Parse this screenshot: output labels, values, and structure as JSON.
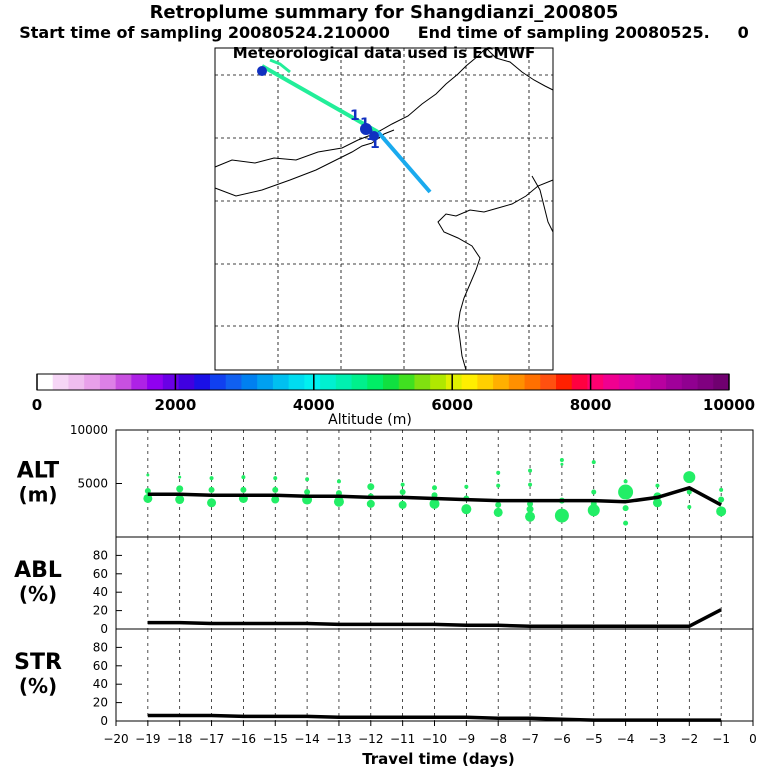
{
  "header": {
    "title": "Retroplume summary for Shangdianzi_200805",
    "start_label": "Start time of sampling 20080524.210000",
    "end_label": "End time of sampling 20080525.",
    "end_suffix": "0",
    "met_line": "Meteorological data used is ECMWF"
  },
  "colors": {
    "trajectory_a": "#22ee99",
    "trajectory_b": "#1aaaee",
    "marker": "#1030c0",
    "scatter": "#22ee66",
    "line": "#000000"
  },
  "map": {
    "marker_glyph": "1"
  },
  "colorbar": {
    "tick_labels": [
      "0",
      "2000",
      "4000",
      "6000",
      "8000",
      "10000"
    ],
    "label": "Altitude (m)",
    "colors": [
      "#ffffff",
      "#f6d6f6",
      "#efbdef",
      "#e8a0ea",
      "#dd80e6",
      "#c850e0",
      "#ae22e6",
      "#9000f0",
      "#6a00e6",
      "#4000e0",
      "#1a10e6",
      "#1040f0",
      "#1060f0",
      "#0080f0",
      "#00a0f0",
      "#00c0f0",
      "#00dcf0",
      "#00f0f0",
      "#00f0d0",
      "#00f0b0",
      "#00f08c",
      "#00ee66",
      "#10e040",
      "#40e020",
      "#80e010",
      "#b0e800",
      "#e0f000",
      "#ffee00",
      "#ffd000",
      "#ffb000",
      "#ff9000",
      "#ff7000",
      "#ff5010",
      "#ff2000",
      "#ff0040",
      "#ff0070",
      "#f00090",
      "#e000a0",
      "#d000a8",
      "#b800a0",
      "#a0009a",
      "#900090",
      "#800080",
      "#700070"
    ]
  },
  "chart_data": [
    {
      "type": "line",
      "name": "ALT",
      "panel_label": "ALT",
      "unit_label": "(m)",
      "ylim": [
        0,
        10000
      ],
      "yticks": [
        5000,
        10000
      ],
      "x": [
        -19,
        -18,
        -17,
        -16,
        -15,
        -14,
        -13,
        -12,
        -11,
        -10,
        -9,
        -8,
        -7,
        -6,
        -5,
        -4,
        -3,
        -2,
        -1
      ],
      "series": [
        {
          "name": "median altitude",
          "values": [
            4000,
            4000,
            3900,
            3900,
            3900,
            3800,
            3800,
            3700,
            3700,
            3600,
            3500,
            3400,
            3400,
            3400,
            3400,
            3300,
            3700,
            4600,
            3000
          ]
        }
      ],
      "scatter": [
        {
          "x": -19,
          "y": 5800,
          "s": 1.5
        },
        {
          "x": -19,
          "y": 4300,
          "s": 3
        },
        {
          "x": -19,
          "y": 3600,
          "s": 4.5
        },
        {
          "x": -18,
          "y": 5600,
          "s": 1.5
        },
        {
          "x": -18,
          "y": 4500,
          "s": 3.5
        },
        {
          "x": -18,
          "y": 3500,
          "s": 4.5
        },
        {
          "x": -17,
          "y": 5500,
          "s": 2
        },
        {
          "x": -17,
          "y": 4400,
          "s": 3
        },
        {
          "x": -17,
          "y": 3200,
          "s": 4.5
        },
        {
          "x": -16,
          "y": 5600,
          "s": 2
        },
        {
          "x": -16,
          "y": 4400,
          "s": 3
        },
        {
          "x": -16,
          "y": 3600,
          "s": 4.5
        },
        {
          "x": -15,
          "y": 5500,
          "s": 2
        },
        {
          "x": -15,
          "y": 4400,
          "s": 3
        },
        {
          "x": -15,
          "y": 3500,
          "s": 4
        },
        {
          "x": -14,
          "y": 5400,
          "s": 2
        },
        {
          "x": -14,
          "y": 4200,
          "s": 3
        },
        {
          "x": -14,
          "y": 3500,
          "s": 5
        },
        {
          "x": -13,
          "y": 5200,
          "s": 2
        },
        {
          "x": -13,
          "y": 4100,
          "s": 3
        },
        {
          "x": -13,
          "y": 3300,
          "s": 5
        },
        {
          "x": -12,
          "y": 4700,
          "s": 3.5
        },
        {
          "x": -12,
          "y": 3800,
          "s": 3
        },
        {
          "x": -12,
          "y": 3100,
          "s": 4
        },
        {
          "x": -11,
          "y": 4900,
          "s": 2
        },
        {
          "x": -11,
          "y": 4200,
          "s": 3
        },
        {
          "x": -11,
          "y": 3000,
          "s": 4
        },
        {
          "x": -10,
          "y": 4600,
          "s": 2.5
        },
        {
          "x": -10,
          "y": 3900,
          "s": 3
        },
        {
          "x": -10,
          "y": 3100,
          "s": 5
        },
        {
          "x": -9,
          "y": 4700,
          "s": 2
        },
        {
          "x": -9,
          "y": 3600,
          "s": 3
        },
        {
          "x": -9,
          "y": 2600,
          "s": 5
        },
        {
          "x": -8,
          "y": 6000,
          "s": 2
        },
        {
          "x": -8,
          "y": 4800,
          "s": 2
        },
        {
          "x": -8,
          "y": 3000,
          "s": 3
        },
        {
          "x": -8,
          "y": 2300,
          "s": 4.5
        },
        {
          "x": -7,
          "y": 6200,
          "s": 2
        },
        {
          "x": -7,
          "y": 4900,
          "s": 2
        },
        {
          "x": -7,
          "y": 3100,
          "s": 3
        },
        {
          "x": -7,
          "y": 2600,
          "s": 3.5
        },
        {
          "x": -7,
          "y": 1900,
          "s": 5
        },
        {
          "x": -6,
          "y": 7200,
          "s": 2
        },
        {
          "x": -6,
          "y": 6800,
          "s": 1.5
        },
        {
          "x": -6,
          "y": 3400,
          "s": 3
        },
        {
          "x": -6,
          "y": 2000,
          "s": 7
        },
        {
          "x": -5,
          "y": 7000,
          "s": 2
        },
        {
          "x": -5,
          "y": 4200,
          "s": 2.5
        },
        {
          "x": -5,
          "y": 3100,
          "s": 3
        },
        {
          "x": -5,
          "y": 2500,
          "s": 6
        },
        {
          "x": -4,
          "y": 5200,
          "s": 2
        },
        {
          "x": -4,
          "y": 4200,
          "s": 7.5
        },
        {
          "x": -4,
          "y": 2700,
          "s": 3
        },
        {
          "x": -4,
          "y": 1300,
          "s": 2.5
        },
        {
          "x": -3,
          "y": 4800,
          "s": 2
        },
        {
          "x": -3,
          "y": 3800,
          "s": 4
        },
        {
          "x": -3,
          "y": 3200,
          "s": 4.5
        },
        {
          "x": -2,
          "y": 5600,
          "s": 6
        },
        {
          "x": -2,
          "y": 4200,
          "s": 2.5
        },
        {
          "x": -2,
          "y": 2800,
          "s": 2
        },
        {
          "x": -1,
          "y": 4400,
          "s": 2
        },
        {
          "x": -1,
          "y": 3500,
          "s": 3
        },
        {
          "x": -1,
          "y": 2400,
          "s": 5
        }
      ]
    },
    {
      "type": "line",
      "name": "ABL",
      "panel_label": "ABL",
      "unit_label": "(%)",
      "ylim": [
        0,
        100
      ],
      "yticks": [
        0,
        20,
        40,
        60,
        80
      ],
      "x": [
        -19,
        -18,
        -17,
        -16,
        -15,
        -14,
        -13,
        -12,
        -11,
        -10,
        -9,
        -8,
        -7,
        -6,
        -5,
        -4,
        -3,
        -2,
        -1
      ],
      "series": [
        {
          "name": "ABL fraction",
          "values": [
            7,
            7,
            6,
            6,
            6,
            6,
            5,
            5,
            5,
            5,
            4,
            4,
            3,
            3,
            3,
            3,
            3,
            3,
            21
          ]
        }
      ]
    },
    {
      "type": "line",
      "name": "STR",
      "panel_label": "STR",
      "unit_label": "(%)",
      "ylim": [
        0,
        100
      ],
      "yticks": [
        0,
        20,
        40,
        60,
        80
      ],
      "x": [
        -19,
        -18,
        -17,
        -16,
        -15,
        -14,
        -13,
        -12,
        -11,
        -10,
        -9,
        -8,
        -7,
        -6,
        -5,
        -4,
        -3,
        -2,
        -1
      ],
      "series": [
        {
          "name": "stratospheric fraction",
          "values": [
            6,
            6,
            6,
            5,
            5,
            5,
            4,
            4,
            4,
            4,
            4,
            3,
            3,
            2,
            1,
            1,
            1,
            1,
            1
          ]
        }
      ],
      "xlim": [
        -20,
        0
      ],
      "xticks": [
        "-20",
        "-19",
        "-18",
        "-17",
        "-16",
        "-15",
        "-14",
        "-13",
        "-12",
        "-11",
        "-10",
        "-9",
        "-8",
        "-7",
        "-6",
        "-5",
        "-4",
        "-3",
        "-2",
        "-1",
        "0"
      ],
      "xlabel": "Travel time (days)"
    }
  ]
}
